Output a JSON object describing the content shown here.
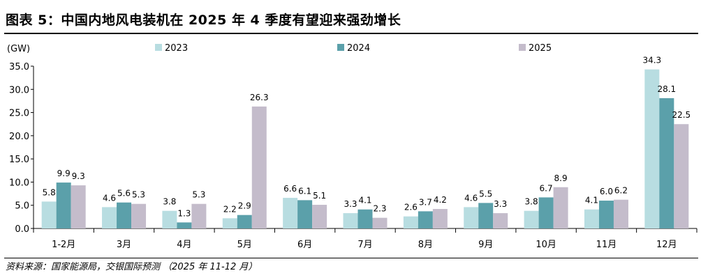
{
  "title": "图表 5：中国内地风电装机在 2025 年 4 季度有望迎来强劲增长",
  "source": "资料来源：国家能源局，交银国际预测 （2025 年 11-12 月）",
  "chart_data": {
    "type": "bar",
    "ylabel": "(GW)",
    "ylim": [
      0,
      35
    ],
    "yticks": [
      "0.0",
      "5.0",
      "10.0",
      "15.0",
      "20.0",
      "25.0",
      "30.0",
      "35.0"
    ],
    "grid": false,
    "legend_position": "top",
    "categories": [
      "1-2月",
      "3月",
      "4月",
      "5月",
      "6月",
      "7月",
      "8月",
      "9月",
      "10月",
      "11月",
      "12月"
    ],
    "series": [
      {
        "name": "2023",
        "color": "#b8dde1",
        "values": [
          5.8,
          4.6,
          3.8,
          2.2,
          6.6,
          3.3,
          2.6,
          4.6,
          3.8,
          4.1,
          34.3
        ]
      },
      {
        "name": "2024",
        "color": "#5ba0aa",
        "values": [
          9.9,
          5.6,
          1.3,
          2.9,
          6.1,
          4.1,
          3.7,
          5.5,
          6.7,
          6.0,
          28.1
        ]
      },
      {
        "name": "2025",
        "color": "#c4bccb",
        "values": [
          9.3,
          5.3,
          5.3,
          26.3,
          5.1,
          2.3,
          4.2,
          3.3,
          8.9,
          6.2,
          22.5
        ]
      }
    ]
  }
}
